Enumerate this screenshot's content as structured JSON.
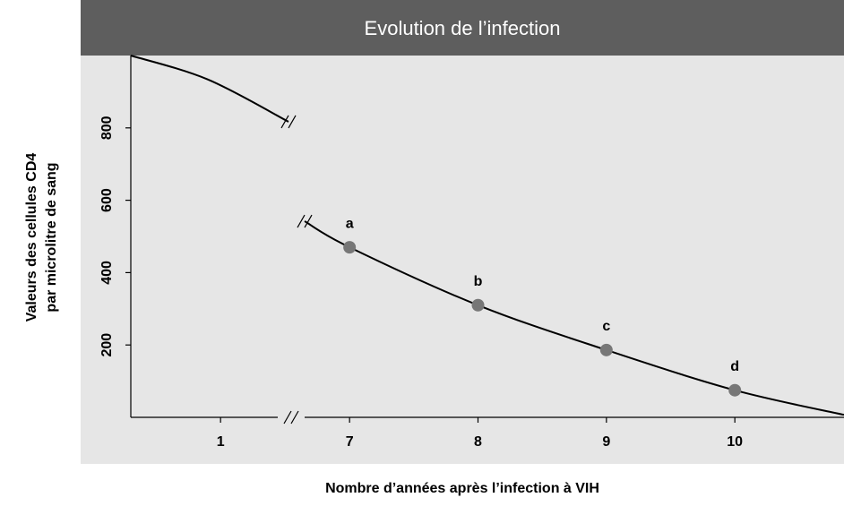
{
  "chart_data": {
    "type": "line",
    "title": "Evolution de l’infection",
    "y_label": [
      "Valeurs des cellules CD4",
      "par microlitre de sang"
    ],
    "x_label": "Nombre d’années après l’infection à VIH",
    "ylim": [
      0,
      1000
    ],
    "yticks": [
      200,
      400,
      600,
      800
    ],
    "xlim": [
      [
        0.3,
        1.53
      ],
      [
        6.65,
        10.85
      ]
    ],
    "xticks": [
      1,
      7,
      8,
      9,
      10
    ],
    "series": [
      {
        "name": null,
        "color": "#000000",
        "x": [
          0.3,
          0.9,
          1.53
        ],
        "values": [
          1000,
          934,
          817
        ]
      },
      {
        "name": null,
        "color": "#000000",
        "x": [
          6.65,
          7,
          8,
          9,
          10,
          10.85
        ],
        "values": [
          542,
          470,
          310,
          186,
          75,
          7
        ]
      }
    ],
    "points": {
      "color": "#777777",
      "x": [
        7,
        8,
        9,
        10
      ],
      "values": [
        470,
        310,
        186,
        75
      ],
      "point_labels": [
        "a",
        "b",
        "c",
        "d"
      ]
    }
  }
}
